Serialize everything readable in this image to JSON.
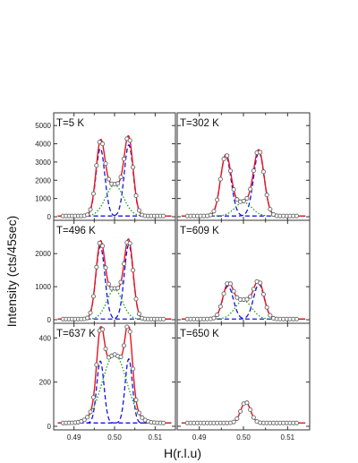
{
  "chart_data": {
    "type": "line",
    "ylabel": "Intensity (cts/45sec)",
    "xlabel": "H(r.l.u)",
    "xlim": [
      0.485,
      0.515
    ],
    "x_ticks": [
      0.49,
      0.5,
      0.51
    ],
    "x_tick_labels": [
      "0.49",
      "0.50",
      "0.51"
    ],
    "grid": false,
    "legend": "none",
    "colors": {
      "data": "#666666",
      "fit": "#e8141c",
      "peak1": "#1515e0",
      "peak2": "#18a018",
      "frame": "#333333"
    },
    "line_styles": {
      "fit": "solid",
      "peak1": "dashed",
      "peak2": "dotted"
    },
    "panels": [
      {
        "label": "T=5 K",
        "position": "top-left",
        "ylim": [
          0,
          5500
        ],
        "y_ticks": [
          0,
          1000,
          2000,
          3000,
          4000,
          5000
        ],
        "y_tick_labels": [
          "0",
          "1000",
          "2000",
          "3000",
          "4000",
          "5000"
        ],
        "peaks": [
          {
            "name": "peak-1",
            "center": 0.4965,
            "amplitude": 3700,
            "sigma": 0.0011
          },
          {
            "name": "peak-2",
            "center": 0.5035,
            "amplitude": 3900,
            "sigma": 0.0011
          },
          {
            "name": "peak-3",
            "center": 0.5,
            "amplitude": 1700,
            "sigma": 0.0022
          }
        ],
        "background": 40
      },
      {
        "label": "T=302 K",
        "position": "top-right",
        "ylim": [
          0,
          5500
        ],
        "y_ticks": [
          0,
          1000,
          2000,
          3000,
          4000,
          5000
        ],
        "y_tick_labels": [],
        "peaks": [
          {
            "name": "peak-1",
            "center": 0.496,
            "amplitude": 3300,
            "sigma": 0.0012
          },
          {
            "name": "peak-2",
            "center": 0.5035,
            "amplitude": 3500,
            "sigma": 0.0012
          },
          {
            "name": "peak-3",
            "center": 0.5,
            "amplitude": 750,
            "sigma": 0.0019
          }
        ],
        "background": 40
      },
      {
        "label": "T=496 K",
        "position": "middle-left",
        "ylim": [
          0,
          2900
        ],
        "y_ticks": [
          0,
          1000,
          2000
        ],
        "y_tick_labels": [
          "0",
          "1000",
          "2000"
        ],
        "peaks": [
          {
            "name": "peak-1",
            "center": 0.4965,
            "amplitude": 2200,
            "sigma": 0.0011
          },
          {
            "name": "peak-2",
            "center": 0.5035,
            "amplitude": 2250,
            "sigma": 0.0011
          },
          {
            "name": "peak-3",
            "center": 0.5,
            "amplitude": 900,
            "sigma": 0.0019
          }
        ],
        "background": 20
      },
      {
        "label": "T=609 K",
        "position": "middle-right",
        "ylim": [
          0,
          2900
        ],
        "y_ticks": [
          0,
          1000,
          2000
        ],
        "y_tick_labels": [],
        "peaks": [
          {
            "name": "peak-1",
            "center": 0.4965,
            "amplitude": 1000,
            "sigma": 0.0012
          },
          {
            "name": "peak-2",
            "center": 0.5035,
            "amplitude": 1050,
            "sigma": 0.0012
          },
          {
            "name": "peak-3",
            "center": 0.5,
            "amplitude": 560,
            "sigma": 0.0019
          }
        ],
        "background": 20
      },
      {
        "label": "T=637 K",
        "position": "bottom-left",
        "ylim": [
          0,
          450
        ],
        "y_ticks": [
          0,
          200,
          400
        ],
        "y_tick_labels": [
          "0",
          "200",
          "400"
        ],
        "peaks": [
          {
            "name": "peak-1",
            "center": 0.4965,
            "amplitude": 280,
            "sigma": 0.0009
          },
          {
            "name": "peak-2",
            "center": 0.5035,
            "amplitude": 290,
            "sigma": 0.0009
          },
          {
            "name": "peak-3",
            "center": 0.5,
            "amplitude": 310,
            "sigma": 0.003
          }
        ],
        "background": 15
      },
      {
        "label": "T=650 K",
        "position": "bottom-right",
        "ylim": [
          0,
          450
        ],
        "y_ticks": [
          0,
          200,
          400
        ],
        "y_tick_labels": [],
        "peaks": [
          {
            "name": "peak-3",
            "center": 0.5005,
            "amplitude": 95,
            "sigma": 0.0011
          }
        ],
        "background": 15
      }
    ]
  }
}
